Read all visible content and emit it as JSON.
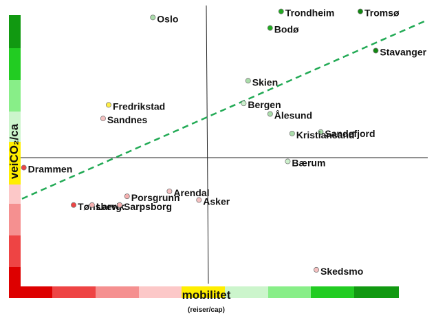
{
  "chart_data": {
    "type": "scatter",
    "title": "",
    "xlabel": "mobilitet",
    "xlabel_unit": "(reiser/cap)",
    "ylabel": "veiCO₂/ca",
    "grid": false,
    "legend": "none",
    "xlim": [
      -1,
      1
    ],
    "ylim": [
      -1,
      1
    ],
    "axis_color_scale": [
      "#dd0000",
      "#ee4444",
      "#f59090",
      "#fcc8c8",
      "#ffee00",
      "#ccf5cc",
      "#88ee88",
      "#22cc22",
      "#119911"
    ],
    "trend_line": {
      "color": "#22aa55",
      "style": "dashed",
      "y_at_xmin": -0.33,
      "y_at_xmax": 0.91
    },
    "points": [
      {
        "name": "Oslo",
        "x": -0.29,
        "y": 0.93,
        "color": "#aaddaa"
      },
      {
        "name": "Trondheim",
        "x": 0.34,
        "y": 0.97,
        "color": "#22aa22"
      },
      {
        "name": "Tromsø",
        "x": 0.7,
        "y": 0.97,
        "color": "#118811"
      },
      {
        "name": "Bodø",
        "x": 0.29,
        "y": 0.86,
        "color": "#22aa22"
      },
      {
        "name": "Stavanger",
        "x": 0.77,
        "y": 0.71,
        "color": "#118811"
      },
      {
        "name": "Skien",
        "x": 0.19,
        "y": 0.51,
        "color": "#aaddaa"
      },
      {
        "name": "Bergen",
        "x": 0.17,
        "y": 0.36,
        "color": "#ccf0cc"
      },
      {
        "name": "Ålesund",
        "x": 0.29,
        "y": 0.29,
        "color": "#aaddaa"
      },
      {
        "name": "Sandefjord",
        "x": 0.52,
        "y": 0.17,
        "color": "#aaddaa"
      },
      {
        "name": "Kristiansand",
        "x": 0.39,
        "y": 0.16,
        "color": "#aaddaa"
      },
      {
        "name": "Bærum",
        "x": 0.37,
        "y": -0.03,
        "color": "#ccf0cc"
      },
      {
        "name": "Fredrikstad",
        "x": -0.53,
        "y": 0.35,
        "color": "#ffee44"
      },
      {
        "name": "Sandnes",
        "x": -0.56,
        "y": 0.26,
        "color": "#f5c0c0"
      },
      {
        "name": "Drammen",
        "x": -0.99,
        "y": -0.08,
        "color": "#ee4444"
      },
      {
        "name": "Arendal",
        "x": -0.2,
        "y": -0.27,
        "color": "#f5c0c0"
      },
      {
        "name": "Asker",
        "x": -0.04,
        "y": -0.34,
        "color": "#f5c0c0"
      },
      {
        "name": "Porsgrunn",
        "x": -0.43,
        "y": -0.31,
        "color": "#f5b0b0"
      },
      {
        "name": "Tønsberg",
        "x": -0.72,
        "y": -0.38,
        "color": "#ee4444"
      },
      {
        "name": "Larvik",
        "x": -0.62,
        "y": -0.38,
        "color": "#f5b0b0"
      },
      {
        "name": "Sarpsborg",
        "x": -0.47,
        "y": -0.38,
        "color": "#f5b0b0"
      },
      {
        "name": "Skedsmo",
        "x": 0.5,
        "y": -0.9,
        "color": "#f5c0c0"
      }
    ]
  }
}
